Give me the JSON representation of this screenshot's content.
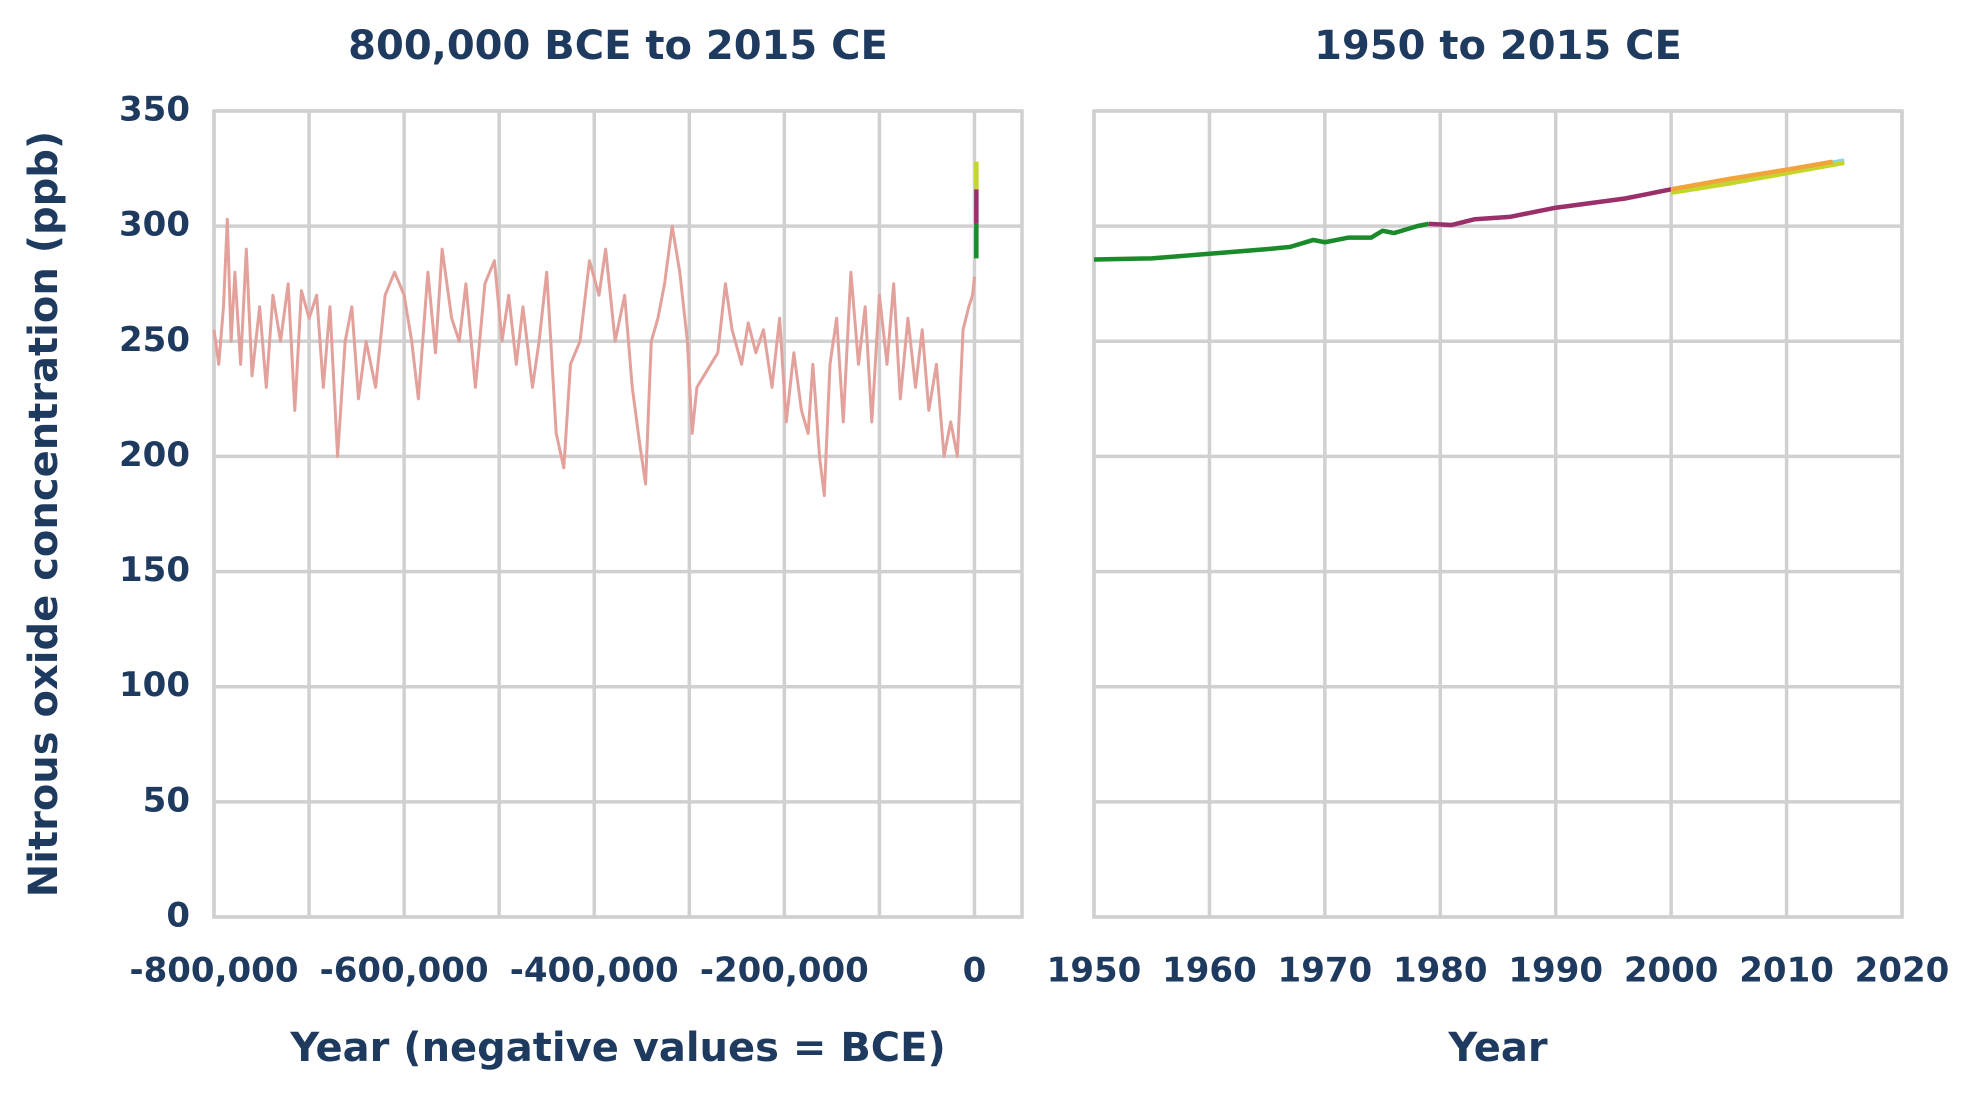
{
  "chart_data": [
    {
      "type": "line",
      "title": "800,000 BCE to 2015 CE",
      "ylabel": "Nitrous oxide concentration (ppb)",
      "xlabel": "Year (negative values = BCE)",
      "xlim": [
        -800000,
        50000
      ],
      "ylim": [
        0,
        350
      ],
      "xticks": [
        {
          "value": -800000,
          "label": "-800,000"
        },
        {
          "value": -600000,
          "label": "-600,000"
        },
        {
          "value": -400000,
          "label": "-400,000"
        },
        {
          "value": -200000,
          "label": "-200,000"
        },
        0
      ],
      "xgrid": [
        -700000,
        -500000,
        -300000,
        -100000
      ],
      "yticks": [
        0,
        50,
        100,
        150,
        200,
        250,
        300,
        350
      ],
      "grid": true,
      "series": [
        {
          "color": "#e3a19c",
          "x": [
            -800000,
            -795000,
            -790000,
            -786000,
            -782000,
            -778000,
            -772000,
            -766000,
            -760000,
            -752000,
            -745000,
            -738000,
            -730000,
            -722000,
            -715000,
            -708000,
            -700000,
            -692000,
            -685000,
            -678000,
            -670000,
            -662000,
            -655000,
            -648000,
            -640000,
            -630000,
            -620000,
            -610000,
            -600000,
            -592000,
            -585000,
            -575000,
            -567000,
            -560000,
            -550000,
            -542000,
            -535000,
            -525000,
            -515000,
            -505000,
            -497000,
            -490000,
            -482000,
            -475000,
            -465000,
            -458000,
            -450000,
            -440000,
            -432000,
            -425000,
            -415000,
            -405000,
            -395000,
            -388000,
            -378000,
            -368000,
            -360000,
            -352000,
            -346000,
            -340000,
            -333000,
            -326000,
            -318000,
            -310000,
            -302000,
            -297000,
            -292000,
            -270000,
            -262000,
            -255000,
            -245000,
            -238000,
            -230000,
            -222000,
            -213000,
            -205000,
            -198000,
            -190000,
            -182000,
            -175000,
            -170000,
            -163000,
            -158000,
            -152000,
            -145000,
            -138000,
            -130000,
            -122000,
            -115000,
            -108000,
            -100000,
            -92000,
            -85000,
            -78000,
            -70000,
            -62000,
            -55000,
            -48000,
            -40000,
            -32000,
            -25000,
            -18000,
            -12000,
            -6000,
            -2000,
            0
          ],
          "values": [
            255,
            240,
            265,
            303,
            250,
            280,
            240,
            290,
            235,
            265,
            230,
            270,
            250,
            275,
            220,
            272,
            260,
            270,
            230,
            265,
            200,
            250,
            265,
            225,
            250,
            230,
            270,
            280,
            270,
            250,
            225,
            280,
            245,
            290,
            260,
            250,
            275,
            230,
            275,
            285,
            250,
            270,
            240,
            265,
            230,
            250,
            280,
            210,
            195,
            240,
            250,
            285,
            270,
            290,
            250,
            270,
            230,
            205,
            188,
            250,
            260,
            275,
            300,
            280,
            250,
            210,
            230,
            245,
            275,
            255,
            240,
            258,
            245,
            255,
            230,
            260,
            215,
            245,
            220,
            210,
            240,
            200,
            183,
            240,
            260,
            215,
            280,
            240,
            265,
            215,
            270,
            240,
            275,
            225,
            260,
            230,
            255,
            220,
            240,
            200,
            215,
            200,
            255,
            265,
            270,
            278
          ]
        },
        {
          "color": "#1a8a2a",
          "x": [
            1950,
            1979
          ],
          "values": [
            286,
            301
          ]
        },
        {
          "color": "#9b2f6a",
          "x": [
            1979,
            2000
          ],
          "values": [
            301,
            316
          ]
        },
        {
          "color": "#c5d62b",
          "x": [
            2000,
            2015
          ],
          "values": [
            316,
            328
          ]
        }
      ]
    },
    {
      "type": "line",
      "title": "1950 to 2015 CE",
      "xlabel": "Year",
      "xlim": [
        1950,
        2020
      ],
      "ylim": [
        0,
        350
      ],
      "xticks": [
        1950,
        1960,
        1970,
        1980,
        1990,
        2000,
        2010,
        2020
      ],
      "ygrid": [
        0,
        50,
        100,
        150,
        200,
        250,
        300,
        350
      ],
      "grid": true,
      "series": [
        {
          "color": "#1a8a2a",
          "x": [
            1950,
            1955,
            1960,
            1965,
            1967,
            1969,
            1970,
            1972,
            1974,
            1975,
            1976,
            1978,
            1979
          ],
          "values": [
            285.5,
            286,
            288,
            290,
            291,
            294,
            293,
            295,
            295,
            298,
            297,
            300,
            301
          ]
        },
        {
          "color": "#9b2f6a",
          "x": [
            1979,
            1981,
            1983,
            1986,
            1988,
            1990,
            1993,
            1996,
            1998,
            2000
          ],
          "values": [
            301,
            300.5,
            303,
            304,
            306,
            308,
            310,
            312,
            314,
            316
          ]
        },
        {
          "color": "#8fd3e8",
          "x": [
            2000,
            2005,
            2010,
            2015
          ],
          "values": [
            316,
            320,
            324,
            328.5
          ]
        },
        {
          "color": "#c5d62b",
          "x": [
            2000,
            2005,
            2010,
            2015
          ],
          "values": [
            314.5,
            318.5,
            323,
            327.5
          ]
        },
        {
          "color": "#f2a33a",
          "x": [
            2000,
            2005,
            2010,
            2014
          ],
          "values": [
            316,
            320.5,
            324.5,
            328
          ]
        }
      ]
    }
  ]
}
